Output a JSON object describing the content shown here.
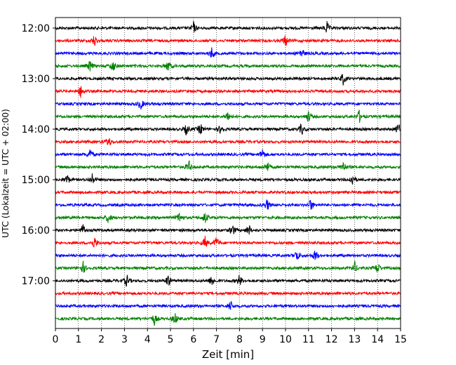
{
  "chart_data": {
    "type": "line",
    "title": "",
    "xlabel": "Zeit  [min]",
    "ylabel": "UTC (Lokalzeit = UTC + 02:00)",
    "xlim": [
      0,
      15
    ],
    "x_ticks": [
      "0",
      "1",
      "2",
      "3",
      "4",
      "5",
      "6",
      "7",
      "8",
      "9",
      "10",
      "11",
      "12",
      "13",
      "14",
      "15"
    ],
    "y_tick_labels": [
      "12:00",
      "13:00",
      "14:00",
      "15:00",
      "16:00",
      "17:00"
    ],
    "grid": "vertical dotted lines at each minute",
    "trace_interval_min": 15,
    "trace_colors": [
      "#000000",
      "#ff0000",
      "#0000ff",
      "#008000"
    ],
    "traces": [
      {
        "start": "12:00",
        "color": "#000000",
        "events_min": [
          6.0,
          11.8
        ]
      },
      {
        "start": "12:15",
        "color": "#ff0000",
        "events_min": [
          1.7,
          10.0
        ]
      },
      {
        "start": "12:30",
        "color": "#0000ff",
        "events_min": [
          6.8,
          10.7
        ]
      },
      {
        "start": "12:45",
        "color": "#008000",
        "events_min": [
          1.5,
          2.5,
          4.9
        ]
      },
      {
        "start": "13:00",
        "color": "#000000",
        "events_min": [
          12.5
        ]
      },
      {
        "start": "13:15",
        "color": "#ff0000",
        "events_min": [
          1.1
        ]
      },
      {
        "start": "13:30",
        "color": "#0000ff",
        "events_min": [
          3.7
        ]
      },
      {
        "start": "13:45",
        "color": "#008000",
        "events_min": [
          7.5,
          11.0,
          13.2
        ]
      },
      {
        "start": "14:00",
        "color": "#000000",
        "events_min": [
          5.7,
          6.3,
          7.2,
          10.7,
          14.9
        ]
      },
      {
        "start": "14:15",
        "color": "#ff0000",
        "events_min": [
          2.3
        ]
      },
      {
        "start": "14:30",
        "color": "#0000ff",
        "events_min": [
          1.5,
          9.0
        ]
      },
      {
        "start": "14:45",
        "color": "#008000",
        "events_min": [
          5.8,
          9.2,
          12.5
        ]
      },
      {
        "start": "15:00",
        "color": "#000000",
        "events_min": [
          0.5,
          1.6,
          12.9
        ]
      },
      {
        "start": "15:15",
        "color": "#ff0000",
        "events_min": []
      },
      {
        "start": "15:30",
        "color": "#0000ff",
        "events_min": [
          9.2,
          11.1
        ]
      },
      {
        "start": "15:45",
        "color": "#008000",
        "events_min": [
          2.3,
          5.4,
          6.5
        ]
      },
      {
        "start": "16:00",
        "color": "#000000",
        "events_min": [
          1.2,
          7.7,
          8.4
        ]
      },
      {
        "start": "16:15",
        "color": "#ff0000",
        "events_min": [
          1.7,
          6.5,
          7.0
        ]
      },
      {
        "start": "16:30",
        "color": "#0000ff",
        "events_min": [
          10.5,
          11.3
        ]
      },
      {
        "start": "16:45",
        "color": "#008000",
        "events_min": [
          1.2,
          13.0,
          14.0
        ]
      },
      {
        "start": "17:00",
        "color": "#000000",
        "events_min": [
          3.1,
          4.9,
          6.8,
          8.0
        ]
      },
      {
        "start": "17:15",
        "color": "#ff0000",
        "events_min": []
      },
      {
        "start": "17:30",
        "color": "#0000ff",
        "events_min": [
          7.6
        ]
      },
      {
        "start": "17:45",
        "color": "#008000",
        "events_min": [
          4.3,
          5.2
        ]
      }
    ]
  }
}
